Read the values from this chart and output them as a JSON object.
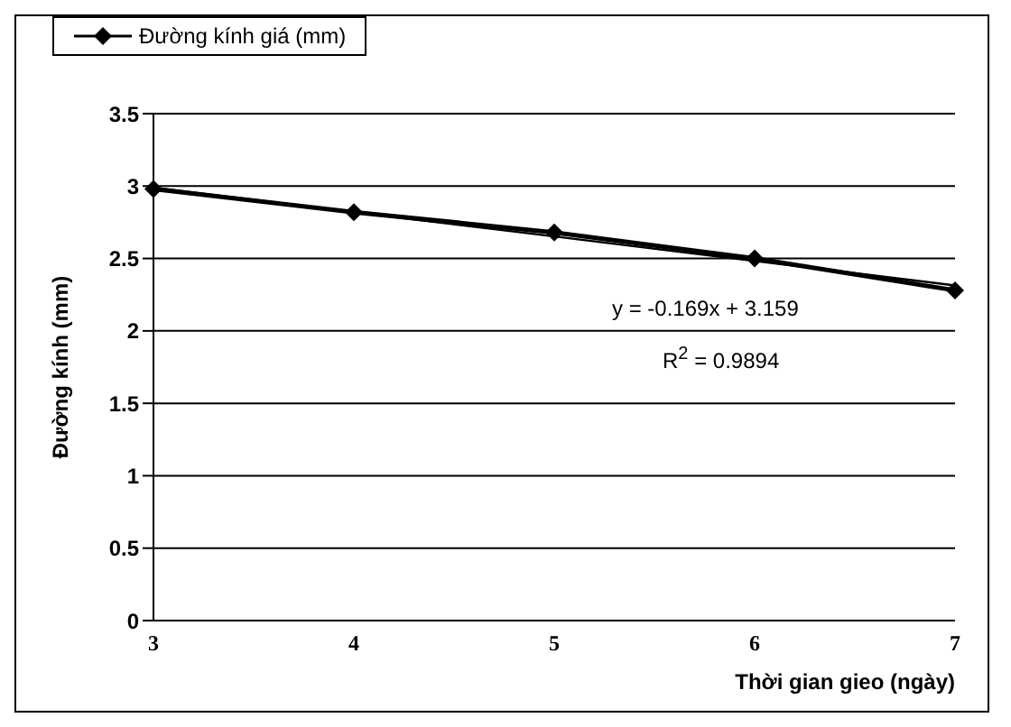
{
  "chart_data": {
    "type": "line",
    "xlabel": "Thời gian gieo (ngày)",
    "ylabel": "Đường kính (mm)",
    "categories": [
      "3",
      "4",
      "5",
      "6",
      "7"
    ],
    "series": [
      {
        "name": "Đường kính giá (mm)",
        "color": "#000000",
        "values": [
          2.98,
          2.82,
          2.68,
          2.5,
          2.28
        ],
        "marker": "diamond"
      },
      {
        "type": "line",
        "color": "#000000",
        "values": [
          2.99,
          2.821,
          2.652,
          2.483,
          2.314
        ],
        "marker": "none"
      }
    ],
    "ylim": [
      0,
      3.5
    ],
    "yticks": [
      0,
      0.5,
      1,
      1.5,
      2,
      2.5,
      3,
      3.5
    ],
    "grid": "y",
    "legend": "top",
    "annotations": [
      "y = -0.169x + 3.159",
      "R$^{2}$ = 0.9894"
    ]
  }
}
